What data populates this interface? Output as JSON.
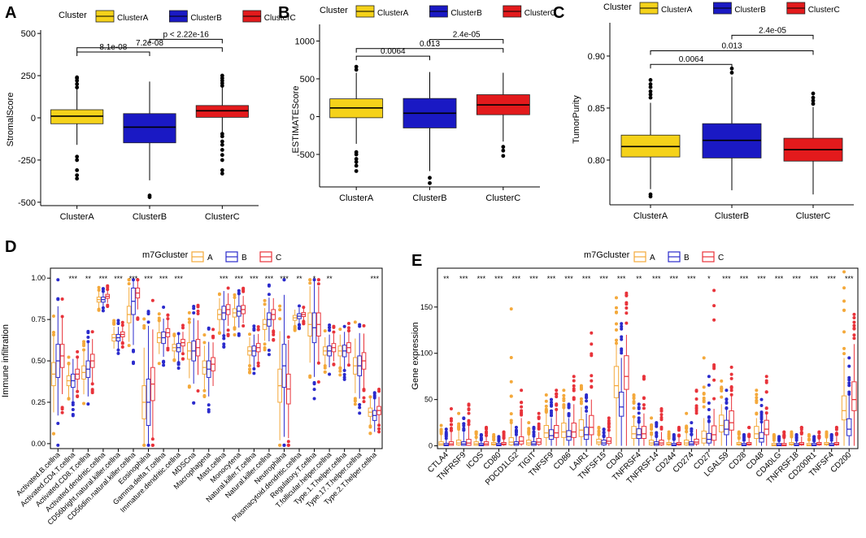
{
  "colors": {
    "clusterA": "#F5D21A",
    "clusterB": "#1A19C4",
    "clusterC": "#E31A1C",
    "m7A": "#F4A93B",
    "m7B": "#2B2BCC",
    "m7C": "#E8333A"
  },
  "chart_data": [
    {
      "id": "A",
      "panel_label": "A",
      "type": "boxplot",
      "legend_title": "Cluster",
      "legend": [
        "ClusterA",
        "ClusterB",
        "ClusterC"
      ],
      "categories": [
        "ClusterA",
        "ClusterB",
        "ClusterC"
      ],
      "ylabel": "StromalScore",
      "xlabel": "",
      "ylim": [
        -520,
        520
      ],
      "yticks": [
        -500,
        -250,
        0,
        250,
        500
      ],
      "ytick_labels": [
        "-500",
        "-250",
        "0",
        "250",
        "500"
      ],
      "boxes": [
        {
          "q1": -35,
          "median": 10,
          "q3": 48,
          "wlo": -160,
          "whi": 170,
          "out": [
            -360,
            -340,
            -310,
            -250,
            -230,
            180,
            200,
            220,
            235,
            240
          ]
        },
        {
          "q1": -148,
          "median": -55,
          "q3": 25,
          "wlo": -370,
          "whi": 215,
          "out": [
            -460,
            -470
          ]
        },
        {
          "q1": 3,
          "median": 42,
          "q3": 73,
          "wlo": -85,
          "whi": 180,
          "out": [
            -330,
            -310,
            -250,
            -220,
            -190,
            -160,
            -140,
            -110,
            -95,
            190,
            205,
            220,
            235,
            250
          ]
        }
      ],
      "brackets": [
        {
          "from": 0,
          "to": 1,
          "y": 390,
          "label": "8.1e-08"
        },
        {
          "from": 0,
          "to": 2,
          "y": 415,
          "label": "7.2e-08"
        },
        {
          "from": 1,
          "to": 2,
          "y": 465,
          "label": "p < 2.22e-16"
        }
      ]
    },
    {
      "id": "B",
      "panel_label": "B",
      "type": "boxplot",
      "legend_title": "Cluster",
      "legend": [
        "ClusterA",
        "ClusterB",
        "ClusterC"
      ],
      "categories": [
        "ClusterA",
        "ClusterB",
        "ClusterC"
      ],
      "ylabel": "ESTIMATEScore",
      "xlabel": "",
      "ylim": [
        -930,
        1220
      ],
      "yticks": [
        -500,
        0,
        500,
        1000
      ],
      "ytick_labels": [
        "-500",
        "0",
        "500",
        "1000"
      ],
      "boxes": [
        {
          "q1": -15,
          "median": 115,
          "q3": 235,
          "wlo": -360,
          "whi": 580,
          "out": [
            -720,
            -650,
            -600,
            -560,
            -500,
            -470,
            620,
            660
          ]
        },
        {
          "q1": -150,
          "median": 45,
          "q3": 240,
          "wlo": -720,
          "whi": 590,
          "out": [
            -810,
            -880
          ]
        },
        {
          "q1": 25,
          "median": 155,
          "q3": 290,
          "wlo": -330,
          "whi": 580,
          "out": [
            -400,
            -450,
            -520
          ]
        }
      ],
      "brackets": [
        {
          "from": 0,
          "to": 1,
          "y": 800,
          "label": "0.0064"
        },
        {
          "from": 0,
          "to": 2,
          "y": 900,
          "label": "0.013"
        },
        {
          "from": 1,
          "to": 2,
          "y": 1020,
          "label": "2.4e-05"
        }
      ]
    },
    {
      "id": "C",
      "panel_label": "C",
      "type": "boxplot",
      "legend_title": "Cluster",
      "legend": [
        "ClusterA",
        "ClusterB",
        "ClusterC"
      ],
      "categories": [
        "ClusterA",
        "ClusterB",
        "ClusterC"
      ],
      "ylabel": "TumorPurity",
      "xlabel": "",
      "ylim": [
        0.757,
        0.932
      ],
      "yticks": [
        0.8,
        0.85,
        0.9
      ],
      "ytick_labels": [
        "0.80",
        "0.85",
        "0.90"
      ],
      "boxes": [
        {
          "q1": 0.803,
          "median": 0.813,
          "q3": 0.824,
          "wlo": 0.772,
          "whi": 0.855,
          "out": [
            0.765,
            0.767,
            0.86,
            0.863,
            0.866,
            0.87,
            0.873,
            0.877
          ]
        },
        {
          "q1": 0.802,
          "median": 0.819,
          "q3": 0.835,
          "wlo": 0.771,
          "whi": 0.88,
          "out": [
            0.884,
            0.888
          ]
        },
        {
          "q1": 0.799,
          "median": 0.81,
          "q3": 0.821,
          "wlo": 0.767,
          "whi": 0.851,
          "out": [
            0.854,
            0.857,
            0.86,
            0.864
          ]
        }
      ],
      "brackets": [
        {
          "from": 0,
          "to": 1,
          "y": 0.892,
          "label": "0.0064"
        },
        {
          "from": 0,
          "to": 2,
          "y": 0.905,
          "label": "0.013"
        },
        {
          "from": 1,
          "to": 2,
          "y": 0.92,
          "label": "2.4e-05"
        }
      ]
    },
    {
      "id": "D",
      "panel_label": "D",
      "type": "grouped_boxplot",
      "legend_title": "m7Gcluster",
      "legend": [
        "A",
        "B",
        "C"
      ],
      "ylabel": "Immune infiltration",
      "xlabel": "",
      "ylim": [
        -0.03,
        1.06
      ],
      "yticks": [
        0.0,
        0.25,
        0.5,
        0.75,
        1.0
      ],
      "ytick_labels": [
        "0.00",
        "0.25",
        "0.50",
        "0.75",
        "1.00"
      ],
      "categories": [
        "Activated.B.cellna",
        "Activated.CD4.T.cellna",
        "Activated.CD8.T.cellna",
        "Activated.dendritic.cellna",
        "CD56bright.natural.killer.cellna",
        "CD56dim.natural.killer.cellna",
        "Eosinophilna",
        "Gamma.delta.T.cellna",
        "Immature.dendritic.cellna",
        "MDSCna",
        "Macrophagena",
        "Mast.cellna",
        "Monocytena",
        "Natural.killer.T.cellna",
        "Natural.killer.cellna",
        "Neutrophilna",
        "Plasmacytoid.dendritic.cellna",
        "Regulatory.T.cellna",
        "T.follicular.helper.cellna",
        "Type.1.T.helper.cellna",
        "Type.17.T.helper.cellna",
        "Type.2.T.helper.cellna"
      ],
      "significance": [
        "",
        "***",
        "**",
        "***",
        "***",
        "***",
        "***",
        "***",
        "***",
        "",
        "",
        "***",
        "***",
        "***",
        "***",
        "***",
        "**",
        "*",
        "**",
        "",
        "",
        "***"
      ],
      "groups": [
        {
          "name": "A",
          "medians": [
            0.42,
            0.38,
            0.43,
            0.87,
            0.64,
            0.78,
            0.25,
            0.64,
            0.58,
            0.56,
            0.46,
            0.78,
            0.79,
            0.56,
            0.72,
            0.35,
            0.76,
            0.72,
            0.56,
            0.56,
            0.47,
            0.19
          ],
          "spread": [
            0.07,
            0.03,
            0.04,
            0.015,
            0.02,
            0.05,
            0.1,
            0.03,
            0.02,
            0.05,
            0.04,
            0.03,
            0.025,
            0.025,
            0.03,
            0.1,
            0.015,
            0.07,
            0.025,
            0.03,
            0.05,
            0.025
          ]
        },
        {
          "name": "B",
          "medians": [
            0.5,
            0.38,
            0.45,
            0.87,
            0.64,
            0.86,
            0.25,
            0.64,
            0.58,
            0.56,
            0.45,
            0.79,
            0.8,
            0.56,
            0.75,
            0.47,
            0.77,
            0.7,
            0.56,
            0.56,
            0.47,
            0.17
          ],
          "spread": [
            0.1,
            0.04,
            0.05,
            0.015,
            0.02,
            0.08,
            0.14,
            0.035,
            0.025,
            0.06,
            0.05,
            0.04,
            0.03,
            0.03,
            0.04,
            0.13,
            0.015,
            0.09,
            0.03,
            0.035,
            0.06,
            0.03
          ]
        },
        {
          "name": "C",
          "medians": [
            0.53,
            0.42,
            0.5,
            0.89,
            0.66,
            0.91,
            0.36,
            0.67,
            0.61,
            0.58,
            0.48,
            0.81,
            0.81,
            0.58,
            0.78,
            0.33,
            0.78,
            0.72,
            0.58,
            0.58,
            0.5,
            0.2
          ],
          "spread": [
            0.07,
            0.03,
            0.04,
            0.012,
            0.015,
            0.03,
            0.1,
            0.025,
            0.02,
            0.05,
            0.04,
            0.03,
            0.025,
            0.025,
            0.03,
            0.09,
            0.012,
            0.07,
            0.025,
            0.03,
            0.05,
            0.025
          ]
        }
      ]
    },
    {
      "id": "E",
      "panel_label": "E",
      "type": "grouped_boxplot",
      "legend_title": "m7Gcluster",
      "legend": [
        "A",
        "B",
        "C"
      ],
      "ylabel": "Gene expression",
      "xlabel": "",
      "ylim": [
        -3,
        192
      ],
      "yticks": [
        0,
        50,
        100,
        150
      ],
      "ytick_labels": [
        "0",
        "50",
        "100",
        "150"
      ],
      "categories": [
        "CTLA4",
        "TNFRSF9",
        "ICOS",
        "CD80",
        "PDCD1LG2",
        "TIGIT",
        "TNFSF9",
        "CD86",
        "LAIR1",
        "TNFSF15",
        "CD40",
        "TNFRSF4",
        "TNFRSF14",
        "CD244",
        "CD274",
        "CD27",
        "LGALS9",
        "CD28",
        "CD48",
        "CD40LG",
        "TNFRSF18",
        "CD200R1",
        "TNFSF4",
        "CD200"
      ],
      "significance": [
        "**",
        "***",
        "***",
        "***",
        "***",
        "***",
        "***",
        "***",
        "***",
        "***",
        "***",
        "**",
        "***",
        "***",
        "***",
        "*",
        "***",
        "***",
        "***",
        "***",
        "***",
        "***",
        "***",
        "***"
      ],
      "groups": [
        {
          "name": "A",
          "medians": [
            2,
            3,
            2,
            2,
            4,
            3,
            14,
            15,
            17,
            4,
            65,
            13,
            3,
            2,
            3,
            8,
            22,
            2,
            13,
            1,
            2,
            1,
            2,
            38
          ],
          "spread": [
            1.5,
            2,
            1.5,
            1,
            3,
            2,
            5,
            6,
            7,
            2,
            13,
            5,
            2,
            1,
            2,
            5,
            7,
            1,
            5,
            1,
            1,
            1,
            1,
            10
          ],
          "whi": [
            12,
            18,
            8,
            6,
            25,
            12,
            35,
            40,
            42,
            12,
            110,
            30,
            12,
            8,
            15,
            30,
            45,
            8,
            30,
            6,
            8,
            6,
            8,
            95
          ],
          "outmax": [
            22,
            35,
            15,
            12,
            148,
            25,
            55,
            60,
            65,
            20,
            160,
            55,
            30,
            15,
            35,
            95,
            70,
            15,
            60,
            12,
            15,
            12,
            15,
            188
          ]
        },
        {
          "name": "B",
          "medians": [
            1,
            2,
            1,
            1,
            2,
            2,
            11,
            10,
            12,
            3,
            42,
            12,
            2,
            1,
            2,
            7,
            18,
            1,
            8,
            1,
            1,
            1,
            1,
            18
          ],
          "spread": [
            1,
            1.5,
            1,
            1,
            1.5,
            1.5,
            4,
            4,
            5,
            2,
            10,
            4,
            1.5,
            1,
            1.5,
            4,
            6,
            1,
            4,
            1,
            1,
            1,
            1,
            7
          ],
          "whi": [
            8,
            15,
            6,
            5,
            12,
            10,
            30,
            30,
            35,
            10,
            95,
            25,
            10,
            6,
            12,
            25,
            40,
            6,
            25,
            5,
            6,
            5,
            6,
            55
          ],
          "outmax": [
            18,
            30,
            12,
            10,
            20,
            20,
            50,
            45,
            55,
            18,
            132,
            45,
            25,
            12,
            25,
            75,
            60,
            12,
            50,
            10,
            12,
            10,
            12,
            95
          ]
        },
        {
          "name": "C",
          "medians": [
            2,
            3,
            2,
            2,
            5,
            4,
            14,
            15,
            20,
            5,
            75,
            13,
            3,
            2,
            4,
            12,
            25,
            2,
            18,
            1,
            2,
            2,
            2,
            50
          ],
          "spread": [
            1.5,
            2.5,
            1.5,
            1,
            3,
            2.5,
            5,
            6,
            8,
            2.5,
            14,
            5,
            2,
            1,
            2,
            6,
            8,
            1,
            6,
            1,
            1,
            1,
            1,
            12
          ],
          "whi": [
            15,
            22,
            10,
            8,
            30,
            15,
            38,
            45,
            50,
            15,
            120,
            35,
            15,
            10,
            18,
            40,
            55,
            10,
            35,
            8,
            10,
            8,
            10,
            110
          ],
          "outmax": [
            40,
            45,
            20,
            15,
            60,
            35,
            60,
            75,
            122,
            30,
            165,
            75,
            40,
            20,
            60,
            168,
            85,
            20,
            75,
            15,
            20,
            15,
            20,
            142
          ]
        }
      ]
    }
  ]
}
